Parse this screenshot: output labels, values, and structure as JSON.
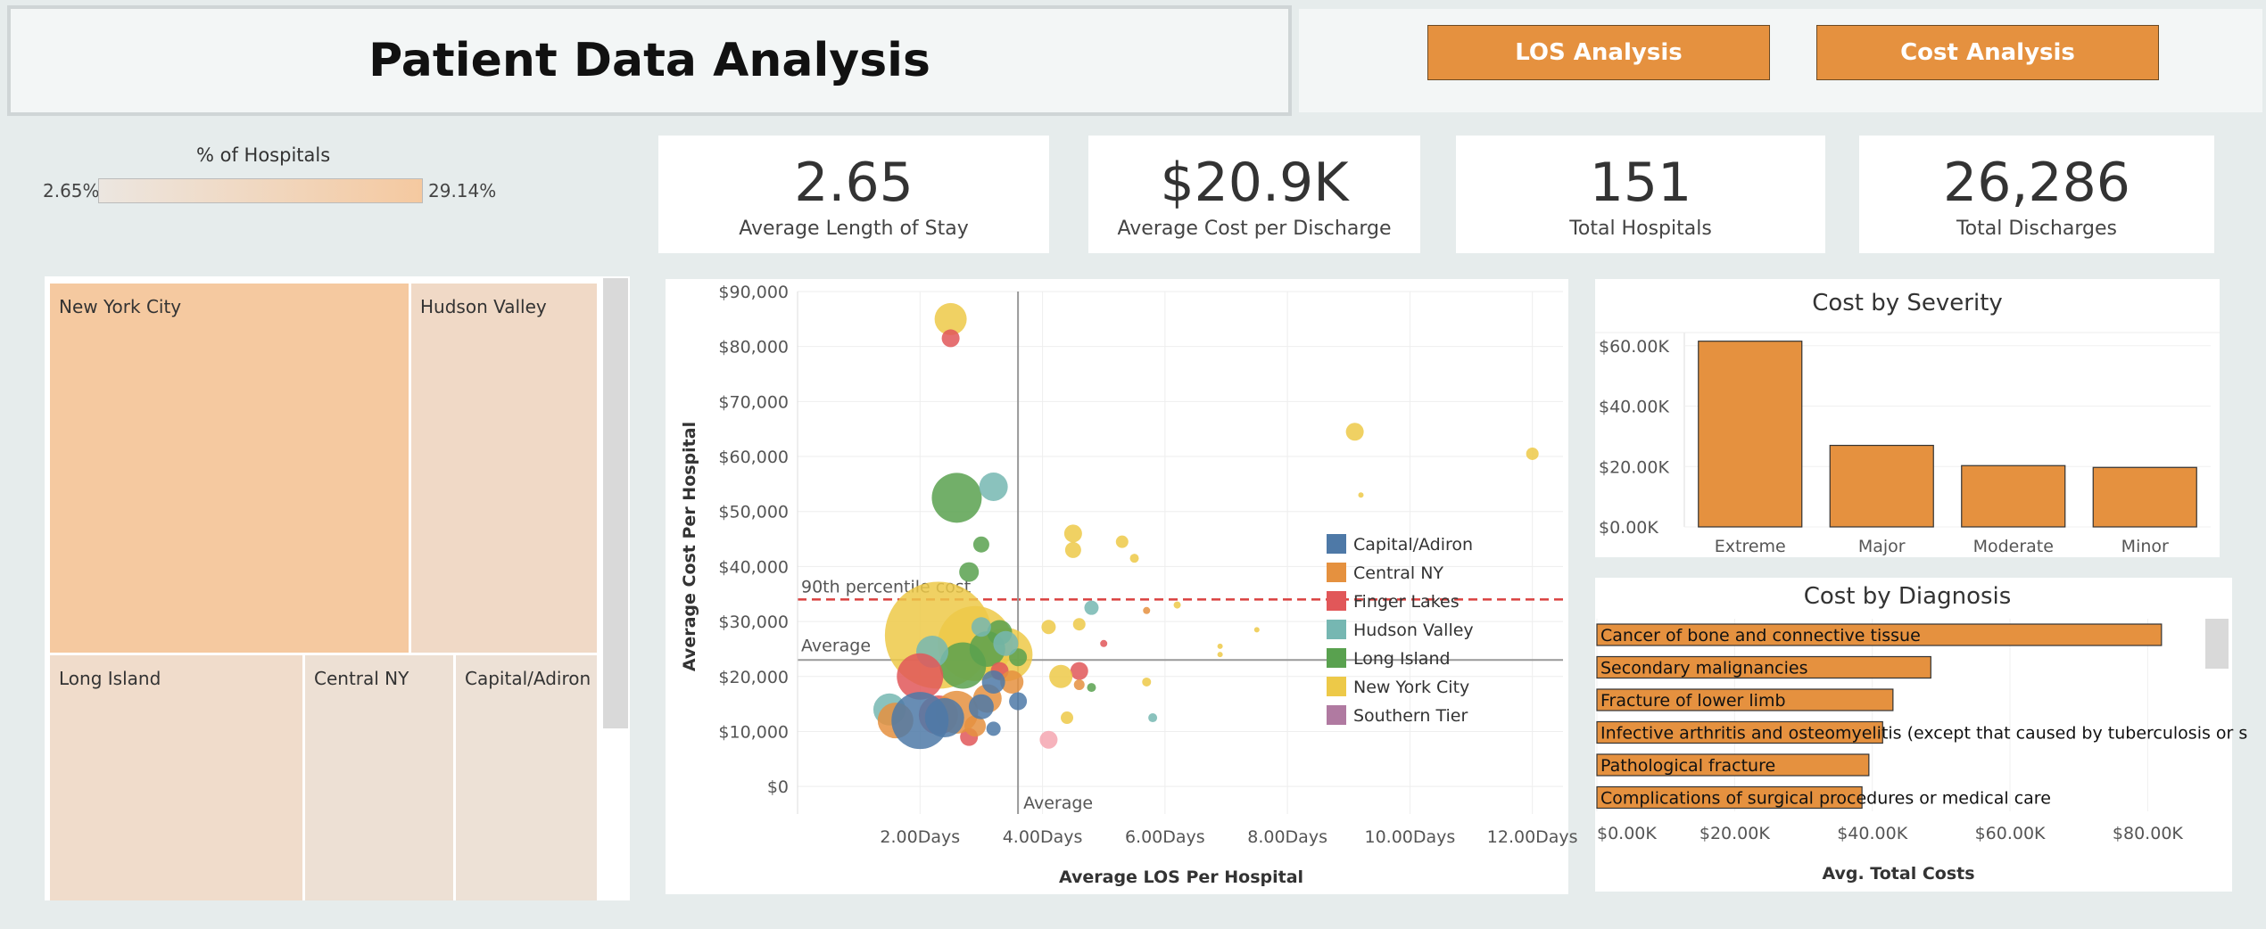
{
  "title": "Patient Data Analysis",
  "buttons": {
    "los": "LOS Analysis",
    "cost": "Cost Analysis"
  },
  "colors": {
    "accent": "#e5913f",
    "ny": "#f5c9a0",
    "bg": "#e6ecec"
  },
  "pct_legend": {
    "title": "% of Hospitals",
    "min": "2.65%",
    "max": "29.14%"
  },
  "kpis": [
    {
      "value": "2.65",
      "label": "Average Length of Stay"
    },
    {
      "value": "$20.9K",
      "label": "Average Cost per Discharge"
    },
    {
      "value": "151",
      "label": "Total Hospitals"
    },
    {
      "value": "26,286",
      "label": "Total Discharges"
    }
  ],
  "treemap": [
    {
      "name": "New York City",
      "pct": 29.14
    },
    {
      "name": "Hudson Valley"
    },
    {
      "name": "Long Island"
    },
    {
      "name": "Central NY"
    },
    {
      "name": "Capital/Adiron"
    }
  ],
  "chart_data": [
    {
      "type": "scatter",
      "xlabel": "Average LOS Per Hospital",
      "ylabel": "Average Cost Per Hospital",
      "xlim": [
        0,
        12.5
      ],
      "ylim": [
        -5000,
        90000
      ],
      "xticks": [
        "2.00Days",
        "4.00Days",
        "6.00Days",
        "8.00Days",
        "10.00Days",
        "12.00Days"
      ],
      "yticks": [
        "$90,000",
        "$80,000",
        "$70,000",
        "$60,000",
        "$50,000",
        "$40,000",
        "$30,000",
        "$20,000",
        "$10,000",
        "$0"
      ],
      "ref_lines": [
        {
          "label": "90th percentile cost",
          "axis": "y",
          "value": 34000,
          "style": "dashed-red"
        },
        {
          "label": "Average",
          "axis": "y",
          "value": 23000
        },
        {
          "label": "Average",
          "axis": "x",
          "value": 3.6
        }
      ],
      "legend": [
        {
          "name": "Capital/Adiron",
          "color": "#4e79a7"
        },
        {
          "name": "Central NY",
          "color": "#e5913f"
        },
        {
          "name": "Finger Lakes",
          "color": "#e15759"
        },
        {
          "name": "Hudson Valley",
          "color": "#76b7b2"
        },
        {
          "name": "Long Island",
          "color": "#59a14f"
        },
        {
          "name": "New York City",
          "color": "#edc948"
        },
        {
          "name": "Southern Tier",
          "color": "#b07aa1"
        }
      ],
      "points": [
        {
          "x": 2.5,
          "y": 85000,
          "s": 18,
          "c": "#edc948"
        },
        {
          "x": 2.5,
          "y": 81500,
          "s": 10,
          "c": "#e15759"
        },
        {
          "x": 2.6,
          "y": 52500,
          "s": 28,
          "c": "#59a14f"
        },
        {
          "x": 3.2,
          "y": 54500,
          "s": 16,
          "c": "#76b7b2"
        },
        {
          "x": 3.0,
          "y": 44000,
          "s": 9,
          "c": "#59a14f"
        },
        {
          "x": 2.8,
          "y": 39000,
          "s": 11,
          "c": "#59a14f"
        },
        {
          "x": 4.5,
          "y": 46000,
          "s": 10,
          "c": "#edc948"
        },
        {
          "x": 4.5,
          "y": 43000,
          "s": 9,
          "c": "#edc948"
        },
        {
          "x": 5.3,
          "y": 44500,
          "s": 7,
          "c": "#edc948"
        },
        {
          "x": 5.5,
          "y": 41500,
          "s": 5,
          "c": "#edc948"
        },
        {
          "x": 9.1,
          "y": 64500,
          "s": 10,
          "c": "#edc948"
        },
        {
          "x": 12.0,
          "y": 60500,
          "s": 7,
          "c": "#edc948"
        },
        {
          "x": 9.2,
          "y": 53000,
          "s": 3,
          "c": "#edc948"
        },
        {
          "x": 2.3,
          "y": 27500,
          "s": 60,
          "c": "#edc948"
        },
        {
          "x": 2.9,
          "y": 26000,
          "s": 42,
          "c": "#edc948"
        },
        {
          "x": 3.4,
          "y": 24000,
          "s": 30,
          "c": "#edc948"
        },
        {
          "x": 2.7,
          "y": 22000,
          "s": 26,
          "c": "#59a14f"
        },
        {
          "x": 3.1,
          "y": 25000,
          "s": 20,
          "c": "#59a14f"
        },
        {
          "x": 3.3,
          "y": 28000,
          "s": 14,
          "c": "#59a14f"
        },
        {
          "x": 3.6,
          "y": 23500,
          "s": 10,
          "c": "#59a14f"
        },
        {
          "x": 2.2,
          "y": 24500,
          "s": 18,
          "c": "#76b7b2"
        },
        {
          "x": 3.4,
          "y": 26000,
          "s": 14,
          "c": "#76b7b2"
        },
        {
          "x": 3.0,
          "y": 29000,
          "s": 11,
          "c": "#76b7b2"
        },
        {
          "x": 4.8,
          "y": 32500,
          "s": 8,
          "c": "#76b7b2"
        },
        {
          "x": 1.5,
          "y": 14000,
          "s": 18,
          "c": "#76b7b2"
        },
        {
          "x": 5.8,
          "y": 12500,
          "s": 5,
          "c": "#76b7b2"
        },
        {
          "x": 2.0,
          "y": 20000,
          "s": 26,
          "c": "#e15759"
        },
        {
          "x": 2.3,
          "y": 13000,
          "s": 22,
          "c": "#e15759"
        },
        {
          "x": 2.8,
          "y": 9000,
          "s": 10,
          "c": "#e15759"
        },
        {
          "x": 3.3,
          "y": 21000,
          "s": 10,
          "c": "#e15759"
        },
        {
          "x": 4.6,
          "y": 21000,
          "s": 10,
          "c": "#e15759"
        },
        {
          "x": 4.1,
          "y": 8500,
          "s": 10,
          "c": "#f4a6b0"
        },
        {
          "x": 1.6,
          "y": 12000,
          "s": 20,
          "c": "#e5913f"
        },
        {
          "x": 2.6,
          "y": 13500,
          "s": 24,
          "c": "#e5913f"
        },
        {
          "x": 3.1,
          "y": 16000,
          "s": 16,
          "c": "#e5913f"
        },
        {
          "x": 3.5,
          "y": 19000,
          "s": 13,
          "c": "#e5913f"
        },
        {
          "x": 2.9,
          "y": 11000,
          "s": 12,
          "c": "#e5913f"
        },
        {
          "x": 4.6,
          "y": 18500,
          "s": 6,
          "c": "#e5913f"
        },
        {
          "x": 5.7,
          "y": 32000,
          "s": 4,
          "c": "#e5913f"
        },
        {
          "x": 2.0,
          "y": 12000,
          "s": 32,
          "c": "#4e79a7"
        },
        {
          "x": 2.4,
          "y": 12500,
          "s": 22,
          "c": "#4e79a7"
        },
        {
          "x": 3.0,
          "y": 14500,
          "s": 14,
          "c": "#4e79a7"
        },
        {
          "x": 3.2,
          "y": 19000,
          "s": 13,
          "c": "#4e79a7"
        },
        {
          "x": 3.6,
          "y": 15500,
          "s": 10,
          "c": "#4e79a7"
        },
        {
          "x": 3.2,
          "y": 10500,
          "s": 8,
          "c": "#4e79a7"
        },
        {
          "x": 4.3,
          "y": 20000,
          "s": 13,
          "c": "#edc948"
        },
        {
          "x": 4.6,
          "y": 29500,
          "s": 7,
          "c": "#edc948"
        },
        {
          "x": 4.1,
          "y": 29000,
          "s": 8,
          "c": "#edc948"
        },
        {
          "x": 5.7,
          "y": 19000,
          "s": 5,
          "c": "#edc948"
        },
        {
          "x": 6.2,
          "y": 33000,
          "s": 4,
          "c": "#edc948"
        },
        {
          "x": 6.9,
          "y": 25500,
          "s": 3,
          "c": "#edc948"
        },
        {
          "x": 6.9,
          "y": 24000,
          "s": 3,
          "c": "#edc948"
        },
        {
          "x": 7.5,
          "y": 28500,
          "s": 3,
          "c": "#edc948"
        },
        {
          "x": 4.4,
          "y": 12500,
          "s": 7,
          "c": "#edc948"
        },
        {
          "x": 4.8,
          "y": 18000,
          "s": 5,
          "c": "#59a14f"
        },
        {
          "x": 5.0,
          "y": 26000,
          "s": 4,
          "c": "#e15759"
        }
      ]
    },
    {
      "type": "bar",
      "title": "Cost by Severity",
      "categories": [
        "Extreme",
        "Major",
        "Moderate",
        "Minor"
      ],
      "values": [
        61500,
        27000,
        20300,
        19700
      ],
      "yticks": [
        "$60.00K",
        "$40.00K",
        "$20.00K",
        "$0.00K"
      ],
      "ylim": [
        0,
        62000
      ]
    },
    {
      "type": "bar",
      "orientation": "horizontal",
      "title": "Cost by Diagnosis",
      "xlabel": "Avg. Total Costs",
      "categories": [
        "Cancer of bone and connective tissue",
        "Secondary malignancies",
        "Fracture of lower limb",
        "Infective arthritis and osteomyelitis (except that caused by tuberculosis or s",
        "Pathological fracture",
        "Complications of surgical procedures or medical care"
      ],
      "values": [
        82000,
        48500,
        43000,
        41500,
        39500,
        38500
      ],
      "xticks": [
        "$0.00K",
        "$20.00K",
        "$40.00K",
        "$60.00K",
        "$80.00K"
      ],
      "xlim": [
        0,
        85000
      ]
    }
  ]
}
